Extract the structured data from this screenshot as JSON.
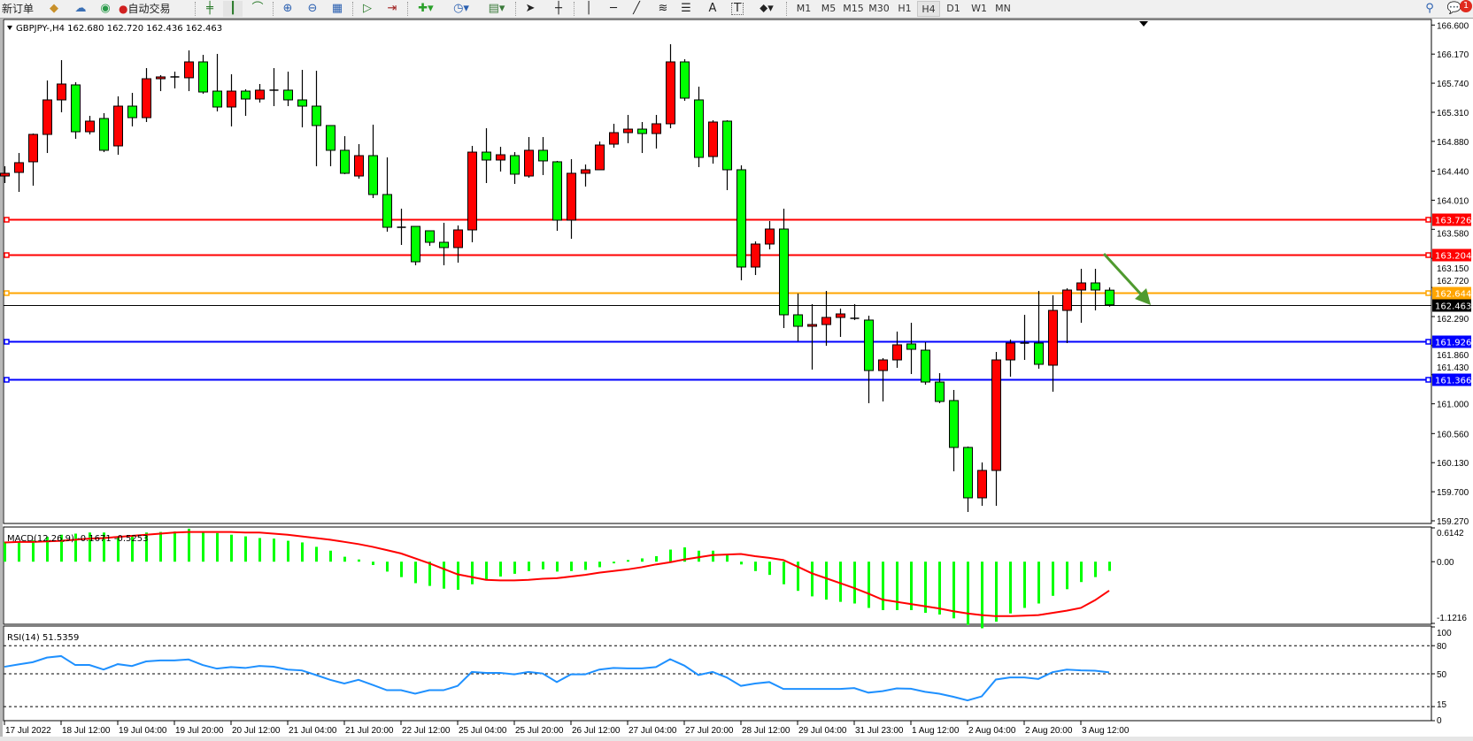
{
  "toolbar": {
    "new_order": "新订单",
    "auto_trading": "自动交易",
    "icons": [
      "gold-icon",
      "cloud-signals-icon",
      "market-watch-icon",
      "auto-trading-icon",
      "bar-chart-icon",
      "candlestick-icon",
      "line-chart-icon",
      "zoom-in-icon",
      "zoom-out-icon",
      "tile-windows-icon",
      "autoscroll-icon",
      "chart-shift-icon",
      "indicators-icon",
      "periods-icon",
      "templates-icon",
      "cursor-icon",
      "crosshair-icon",
      "vertical-line-icon",
      "horizontal-line-icon",
      "trendline-icon",
      "fibonacci-icon",
      "text-icon",
      "text-label-icon",
      "arrows-icon",
      "search-icon",
      "notifications-icon"
    ],
    "text_tool": "A",
    "label_tool": "T",
    "timeframes": [
      "M1",
      "M5",
      "M15",
      "M30",
      "H1",
      "H4",
      "D1",
      "W1",
      "MN"
    ],
    "active_timeframe": "H4",
    "notification_count": "1"
  },
  "chart": {
    "header": "GBPJPY-,H4  162.680 162.720 162.436 162.463",
    "colors": {
      "bull": "#ff0000",
      "bear": "#00ff00",
      "outline": "#000000",
      "arrow": "#4f9a2f"
    }
  },
  "chart_data": [
    {
      "type": "candlestick",
      "symbol": "GBPJPY-",
      "timeframe": "H4",
      "ylim": [
        159.27,
        166.6
      ],
      "price_ticks": [
        "166.600",
        "166.170",
        "165.740",
        "165.310",
        "164.880",
        "164.440",
        "164.010",
        "163.580",
        "163.150",
        "162.720",
        "162.290",
        "161.860",
        "161.430",
        "161.000",
        "160.560",
        "160.130",
        "159.700",
        "159.270"
      ],
      "x_labels": [
        "17 Jul 2022",
        "18 Jul 12:00",
        "19 Jul 04:00",
        "19 Jul 20:00",
        "20 Jul 12:00",
        "21 Jul 04:00",
        "21 Jul 20:00",
        "22 Jul 12:00",
        "25 Jul 04:00",
        "25 Jul 20:00",
        "26 Jul 12:00",
        "27 Jul 04:00",
        "27 Jul 20:00",
        "28 Jul 12:00",
        "29 Jul 04:00",
        "31 Jul 23:00",
        "1 Aug 12:00",
        "2 Aug 04:00",
        "2 Aug 20:00",
        "3 Aug 12:00"
      ],
      "ohlc": [
        [
          164.368,
          164.512,
          164.264,
          164.408
        ],
        [
          164.421,
          164.708,
          164.133,
          164.565
        ],
        [
          164.578,
          164.996,
          164.225,
          164.983
        ],
        [
          164.983,
          165.78,
          164.708,
          165.493
        ],
        [
          165.493,
          166.081,
          165.31,
          165.728
        ],
        [
          165.715,
          165.754,
          164.918,
          165.022
        ],
        [
          165.022,
          165.257,
          164.983,
          165.179
        ],
        [
          165.218,
          165.297,
          164.721,
          164.748
        ],
        [
          164.813,
          165.545,
          164.682,
          165.401
        ],
        [
          165.401,
          165.597,
          165.101,
          165.231
        ],
        [
          165.231,
          165.963,
          165.166,
          165.806
        ],
        [
          165.806,
          165.859,
          165.623,
          165.833
        ],
        [
          165.833,
          165.911,
          165.663,
          165.833
        ],
        [
          165.82,
          166.225,
          165.623,
          166.055
        ],
        [
          166.055,
          166.159,
          165.584,
          165.61
        ],
        [
          165.623,
          166.173,
          165.323,
          165.388
        ],
        [
          165.388,
          165.872,
          165.101,
          165.623
        ],
        [
          165.623,
          165.65,
          165.257,
          165.506
        ],
        [
          165.506,
          165.728,
          165.454,
          165.637
        ],
        [
          165.637,
          165.963,
          165.401,
          165.637
        ],
        [
          165.637,
          165.911,
          165.401,
          165.493
        ],
        [
          165.493,
          165.937,
          165.087,
          165.401
        ],
        [
          165.401,
          165.924,
          164.512,
          165.114
        ],
        [
          165.114,
          165.114,
          164.512,
          164.748
        ],
        [
          164.748,
          164.957,
          164.395,
          164.408
        ],
        [
          164.368,
          164.839,
          164.329,
          164.669
        ],
        [
          164.669,
          165.127,
          164.042,
          164.094
        ],
        [
          164.094,
          164.643,
          163.545,
          163.61
        ],
        [
          163.61,
          163.885,
          163.349,
          163.61
        ],
        [
          163.623,
          163.623,
          163.048,
          163.1
        ],
        [
          163.558,
          163.558,
          163.336,
          163.388
        ],
        [
          163.388,
          163.676,
          163.048,
          163.31
        ],
        [
          163.31,
          163.637,
          163.087,
          163.571
        ],
        [
          163.571,
          164.813,
          163.388,
          164.721
        ],
        [
          164.721,
          165.074,
          164.264,
          164.604
        ],
        [
          164.604,
          164.8,
          164.434,
          164.682
        ],
        [
          164.669,
          164.721,
          164.251,
          164.395
        ],
        [
          164.368,
          164.944,
          164.342,
          164.748
        ],
        [
          164.748,
          164.944,
          164.382,
          164.591
        ],
        [
          164.578,
          164.591,
          163.558,
          163.715
        ],
        [
          163.715,
          164.617,
          163.44,
          164.408
        ],
        [
          164.408,
          164.538,
          164.212,
          164.46
        ],
        [
          164.46,
          164.878,
          164.46,
          164.826
        ],
        [
          164.839,
          165.14,
          164.787,
          165.009
        ],
        [
          165.009,
          165.271,
          164.852,
          165.061
        ],
        [
          165.061,
          165.166,
          164.708,
          164.996
        ],
        [
          164.996,
          165.271,
          164.774,
          165.14
        ],
        [
          165.14,
          166.316,
          165.074,
          166.055
        ],
        [
          166.055,
          166.094,
          165.48,
          165.519
        ],
        [
          165.493,
          165.689,
          164.499,
          164.643
        ],
        [
          164.656,
          165.192,
          164.551,
          165.166
        ],
        [
          165.179,
          165.192,
          164.159,
          164.46
        ],
        [
          164.46,
          164.525,
          162.826,
          163.022
        ],
        [
          163.022,
          163.401,
          162.904,
          163.362
        ],
        [
          163.362,
          163.702,
          163.283,
          163.584
        ],
        [
          163.584,
          163.885,
          162.12,
          162.316
        ],
        [
          162.316,
          162.63,
          161.924,
          162.146
        ],
        [
          162.146,
          162.473,
          161.506,
          162.172
        ],
        [
          162.172,
          162.669,
          161.858,
          162.277
        ],
        [
          162.277,
          162.408,
          161.989,
          162.329
        ],
        [
          162.264,
          162.473,
          162.238,
          162.264
        ],
        [
          162.238,
          162.303,
          161.009,
          161.492
        ],
        [
          161.492,
          161.675,
          161.035,
          161.649
        ],
        [
          161.649,
          162.068,
          161.532,
          161.872
        ],
        [
          161.885,
          162.198,
          161.44,
          161.806
        ],
        [
          161.793,
          161.911,
          161.283,
          161.322
        ],
        [
          161.322,
          161.453,
          161.009,
          161.035
        ],
        [
          161.048,
          161.205,
          160.002,
          160.355
        ],
        [
          160.355,
          160.368,
          159.401,
          159.61
        ],
        [
          159.61,
          160.133,
          159.492,
          160.015
        ],
        [
          160.015,
          161.767,
          159.492,
          161.649
        ],
        [
          161.649,
          161.95,
          161.401,
          161.898
        ],
        [
          161.898,
          162.316,
          161.649,
          161.898
        ],
        [
          161.898,
          162.669,
          161.519,
          161.584
        ],
        [
          161.571,
          162.604,
          161.179,
          162.381
        ],
        [
          162.381,
          162.708,
          161.898,
          162.682
        ],
        [
          162.682,
          162.996,
          162.198,
          162.787
        ],
        [
          162.787,
          162.996,
          162.381,
          162.682
        ],
        [
          162.68,
          162.72,
          162.436,
          162.463
        ]
      ],
      "levels": [
        {
          "price": 163.726,
          "label": "163.726",
          "color": "#ff0000"
        },
        {
          "price": 163.204,
          "label": "163.204",
          "color": "#ff0000"
        },
        {
          "price": 162.644,
          "label": "162.644",
          "color": "#ffa500"
        },
        {
          "price": 162.463,
          "label": "162.463",
          "color": "#000000"
        },
        {
          "price": 161.926,
          "label": "161.926",
          "color": "#0000ff"
        },
        {
          "price": 161.366,
          "label": "161.366",
          "color": "#0000ff"
        }
      ]
    },
    {
      "type": "bar+line",
      "title": "MACD(12,26,9) -0.1671 -0.5253",
      "ylim": [
        -1.1216,
        0.6142
      ],
      "y_ticks": [
        "0.6142",
        "0.00",
        "-1.1216"
      ],
      "histogram_color": "#00ff00",
      "signal_color": "#ff0000",
      "histogram": [
        0.36,
        0.36,
        0.39,
        0.45,
        0.49,
        0.51,
        0.53,
        0.53,
        0.46,
        0.48,
        0.53,
        0.54,
        0.55,
        0.6,
        0.55,
        0.52,
        0.49,
        0.46,
        0.43,
        0.42,
        0.38,
        0.35,
        0.27,
        0.2,
        0.09,
        0.04,
        -0.06,
        -0.18,
        -0.28,
        -0.39,
        -0.44,
        -0.49,
        -0.51,
        -0.41,
        -0.33,
        -0.27,
        -0.22,
        -0.17,
        -0.14,
        -0.18,
        -0.17,
        -0.15,
        -0.1,
        -0.03,
        0.03,
        0.06,
        0.1,
        0.22,
        0.26,
        0.2,
        0.2,
        0.12,
        -0.05,
        -0.17,
        -0.24,
        -0.41,
        -0.53,
        -0.63,
        -0.69,
        -0.73,
        -0.76,
        -0.84,
        -0.88,
        -0.88,
        -0.88,
        -0.93,
        -0.96,
        -1.03,
        -1.15,
        -1.21,
        -1.09,
        -0.94,
        -0.84,
        -0.76,
        -0.62,
        -0.5,
        -0.37,
        -0.28,
        -0.1671
      ],
      "signal": [
        0.35,
        0.36,
        0.36,
        0.37,
        0.38,
        0.4,
        0.42,
        0.43,
        0.45,
        0.47,
        0.49,
        0.51,
        0.53,
        0.54,
        0.54,
        0.54,
        0.54,
        0.53,
        0.53,
        0.51,
        0.49,
        0.46,
        0.43,
        0.4,
        0.36,
        0.32,
        0.27,
        0.21,
        0.15,
        0.06,
        -0.03,
        -0.13,
        -0.23,
        -0.28,
        -0.33,
        -0.34,
        -0.34,
        -0.33,
        -0.31,
        -0.3,
        -0.27,
        -0.24,
        -0.2,
        -0.17,
        -0.14,
        -0.1,
        -0.05,
        -0.01,
        0.04,
        0.08,
        0.12,
        0.13,
        0.14,
        0.1,
        0.07,
        0.03,
        -0.09,
        -0.21,
        -0.3,
        -0.39,
        -0.48,
        -0.58,
        -0.69,
        -0.73,
        -0.77,
        -0.81,
        -0.85,
        -0.9,
        -0.94,
        -0.97,
        -0.99,
        -0.99,
        -0.98,
        -0.97,
        -0.93,
        -0.89,
        -0.84,
        -0.7,
        -0.5253
      ]
    },
    {
      "type": "line",
      "title": "RSI(14) 51.5359",
      "ylim": [
        0,
        100
      ],
      "y_ticks": [
        "100",
        "80",
        "50",
        "15",
        "0"
      ],
      "levels": [
        80,
        50,
        15
      ],
      "color": "#1e90ff",
      "values": [
        57.5,
        60.0,
        62.4,
        67.3,
        68.9,
        59.4,
        59.4,
        54.5,
        60.3,
        58.3,
        63.2,
        64.3,
        64.3,
        65.3,
        59.4,
        55.5,
        57.2,
        56.2,
        58.4,
        57.5,
        54.5,
        53.6,
        48.7,
        43.6,
        39.6,
        43.6,
        38.1,
        32.5,
        32.5,
        28.8,
        32.5,
        32.5,
        37.1,
        52.0,
        51.0,
        51.0,
        49.4,
        52.0,
        50.3,
        41.2,
        49.4,
        49.4,
        54.5,
        56.3,
        55.8,
        55.8,
        57.2,
        65.6,
        58.8,
        48.7,
        52.0,
        46.1,
        37.1,
        39.6,
        41.2,
        33.8,
        33.8,
        33.8,
        33.8,
        33.8,
        34.8,
        29.9,
        31.5,
        34.4,
        34.1,
        30.8,
        28.8,
        25.5,
        21.6,
        25.9,
        43.9,
        46.1,
        46.1,
        44.5,
        51.7,
        54.5,
        53.6,
        53.3,
        51.5359
      ]
    }
  ]
}
